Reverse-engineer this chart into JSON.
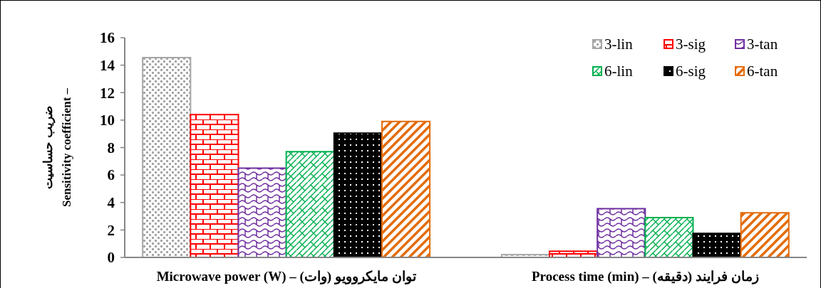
{
  "chart_data": {
    "type": "bar",
    "ylabel": "ضریب حساسیت\nSensitivity coefficient –",
    "categories": [
      "Microwave power (W) – توان مایکروویو (وات)",
      "Process time (min) – زمان فرایند (دقیقه)"
    ],
    "ylim": [
      0,
      16
    ],
    "yticks": [
      0,
      2,
      4,
      6,
      8,
      10,
      12,
      14,
      16
    ],
    "grid": false,
    "legend": "top right",
    "series": [
      {
        "name": "3-lin",
        "color": "#a6a6a6",
        "values": [
          14.55,
          0.2
        ]
      },
      {
        "name": "3-sig",
        "color": "#ff0000",
        "values": [
          10.4,
          0.45
        ]
      },
      {
        "name": "3-tan",
        "color": "#7030a0",
        "values": [
          6.5,
          3.55
        ]
      },
      {
        "name": "6-lin",
        "color": "#00b050",
        "values": [
          7.7,
          2.9
        ]
      },
      {
        "name": "6-sig",
        "color": "#000000",
        "values": [
          9.05,
          1.75
        ]
      },
      {
        "name": "6-tan",
        "color": "#e46c0a",
        "values": [
          9.9,
          3.25
        ]
      }
    ]
  }
}
